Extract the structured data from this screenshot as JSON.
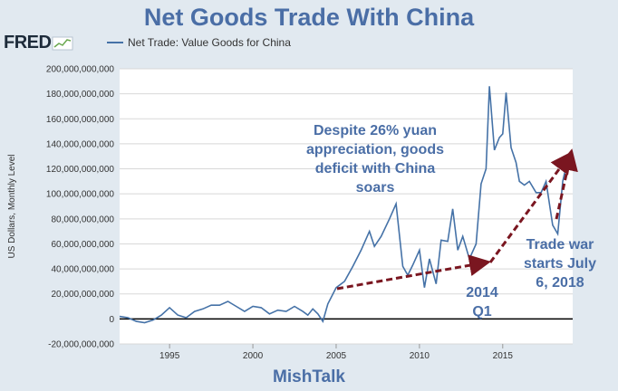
{
  "title": "Net Goods Trade With China",
  "logo": {
    "text": "FRED",
    "icon": "fred-chart-icon"
  },
  "footer": "MishTalk",
  "colors": {
    "line": "#4572a7",
    "annotation_text": "#4a6ea6",
    "arrow": "#7a1620",
    "zero_line": "#000000",
    "background": "#e1e9f0",
    "plot_background": "#ffffff"
  },
  "chart_data": {
    "type": "line",
    "ylabel": "US Dollars, Monthly Level",
    "xlim": [
      1992,
      2019.2
    ],
    "ylim": [
      -20000000000,
      200000000000
    ],
    "yticks": [
      -20000000000,
      0,
      20000000000,
      40000000000,
      60000000000,
      80000000000,
      100000000000,
      120000000000,
      140000000000,
      160000000000,
      180000000000,
      200000000000
    ],
    "ytick_labels": [
      "-20,000,000,000",
      "0",
      "20,000,000,000",
      "40,000,000,000",
      "60,000,000,000",
      "80,000,000,000",
      "100,000,000,000",
      "120,000,000,000",
      "140,000,000,000",
      "160,000,000,000",
      "180,000,000,000",
      "200,000,000,000"
    ],
    "xticks": [
      1995,
      2000,
      2005,
      2010,
      2015
    ],
    "xtick_labels": [
      "1995",
      "2000",
      "2005",
      "2010",
      "2015"
    ],
    "grid": true,
    "legend_position": "top-left",
    "series": [
      {
        "name": "Net Trade: Value Goods for China",
        "x": [
          1992.0,
          1992.5,
          1993.0,
          1993.5,
          1994.0,
          1994.5,
          1995.0,
          1995.5,
          1996.0,
          1996.5,
          1997.0,
          1997.5,
          1998.0,
          1998.5,
          1999.0,
          1999.5,
          2000.0,
          2000.5,
          2001.0,
          2001.5,
          2002.0,
          2002.5,
          2003.0,
          2003.3,
          2003.6,
          2003.9,
          2004.2,
          2004.5,
          2005.0,
          2005.5,
          2006.0,
          2006.5,
          2007.0,
          2007.3,
          2007.7,
          2008.2,
          2008.6,
          2009.0,
          2009.3,
          2009.6,
          2010.0,
          2010.3,
          2010.6,
          2011.0,
          2011.3,
          2011.7,
          2012.0,
          2012.3,
          2012.6,
          2013.0,
          2013.4,
          2013.7,
          2014.0,
          2014.2,
          2014.5,
          2014.8,
          2015.0,
          2015.2,
          2015.5,
          2015.8,
          2016.0,
          2016.3,
          2016.6,
          2017.0,
          2017.3,
          2017.6,
          2018.0,
          2018.3,
          2018.6,
          2018.9,
          2019.1
        ],
        "values": [
          2000000000,
          1000000000,
          -2000000000,
          -3000000000,
          -1000000000,
          3000000000,
          9000000000,
          3000000000,
          1000000000,
          6000000000,
          8000000000,
          11000000000,
          11000000000,
          14000000000,
          10000000000,
          6000000000,
          10000000000,
          9000000000,
          4000000000,
          7000000000,
          6000000000,
          10000000000,
          6000000000,
          3000000000,
          8000000000,
          4000000000,
          -2000000000,
          12000000000,
          25000000000,
          30000000000,
          42000000000,
          55000000000,
          70000000000,
          58000000000,
          66000000000,
          80000000000,
          92000000000,
          42000000000,
          35000000000,
          43000000000,
          55000000000,
          25000000000,
          48000000000,
          28000000000,
          63000000000,
          62000000000,
          88000000000,
          55000000000,
          66000000000,
          48000000000,
          60000000000,
          108000000000,
          120000000000,
          186000000000,
          135000000000,
          145000000000,
          148000000000,
          181000000000,
          137000000000,
          125000000000,
          110000000000,
          107000000000,
          110000000000,
          101000000000,
          101000000000,
          110000000000,
          75000000000,
          68000000000,
          110000000000,
          128000000000,
          132000000000
        ]
      }
    ],
    "annotations": [
      {
        "text_lines": [
          "Despite 26% yuan",
          "appreciation, goods",
          "deficit with China",
          "soars"
        ]
      },
      {
        "text_lines": [
          "2014",
          "Q1"
        ]
      },
      {
        "text_lines": [
          "Trade war",
          "starts July",
          "6, 2018"
        ]
      }
    ]
  }
}
